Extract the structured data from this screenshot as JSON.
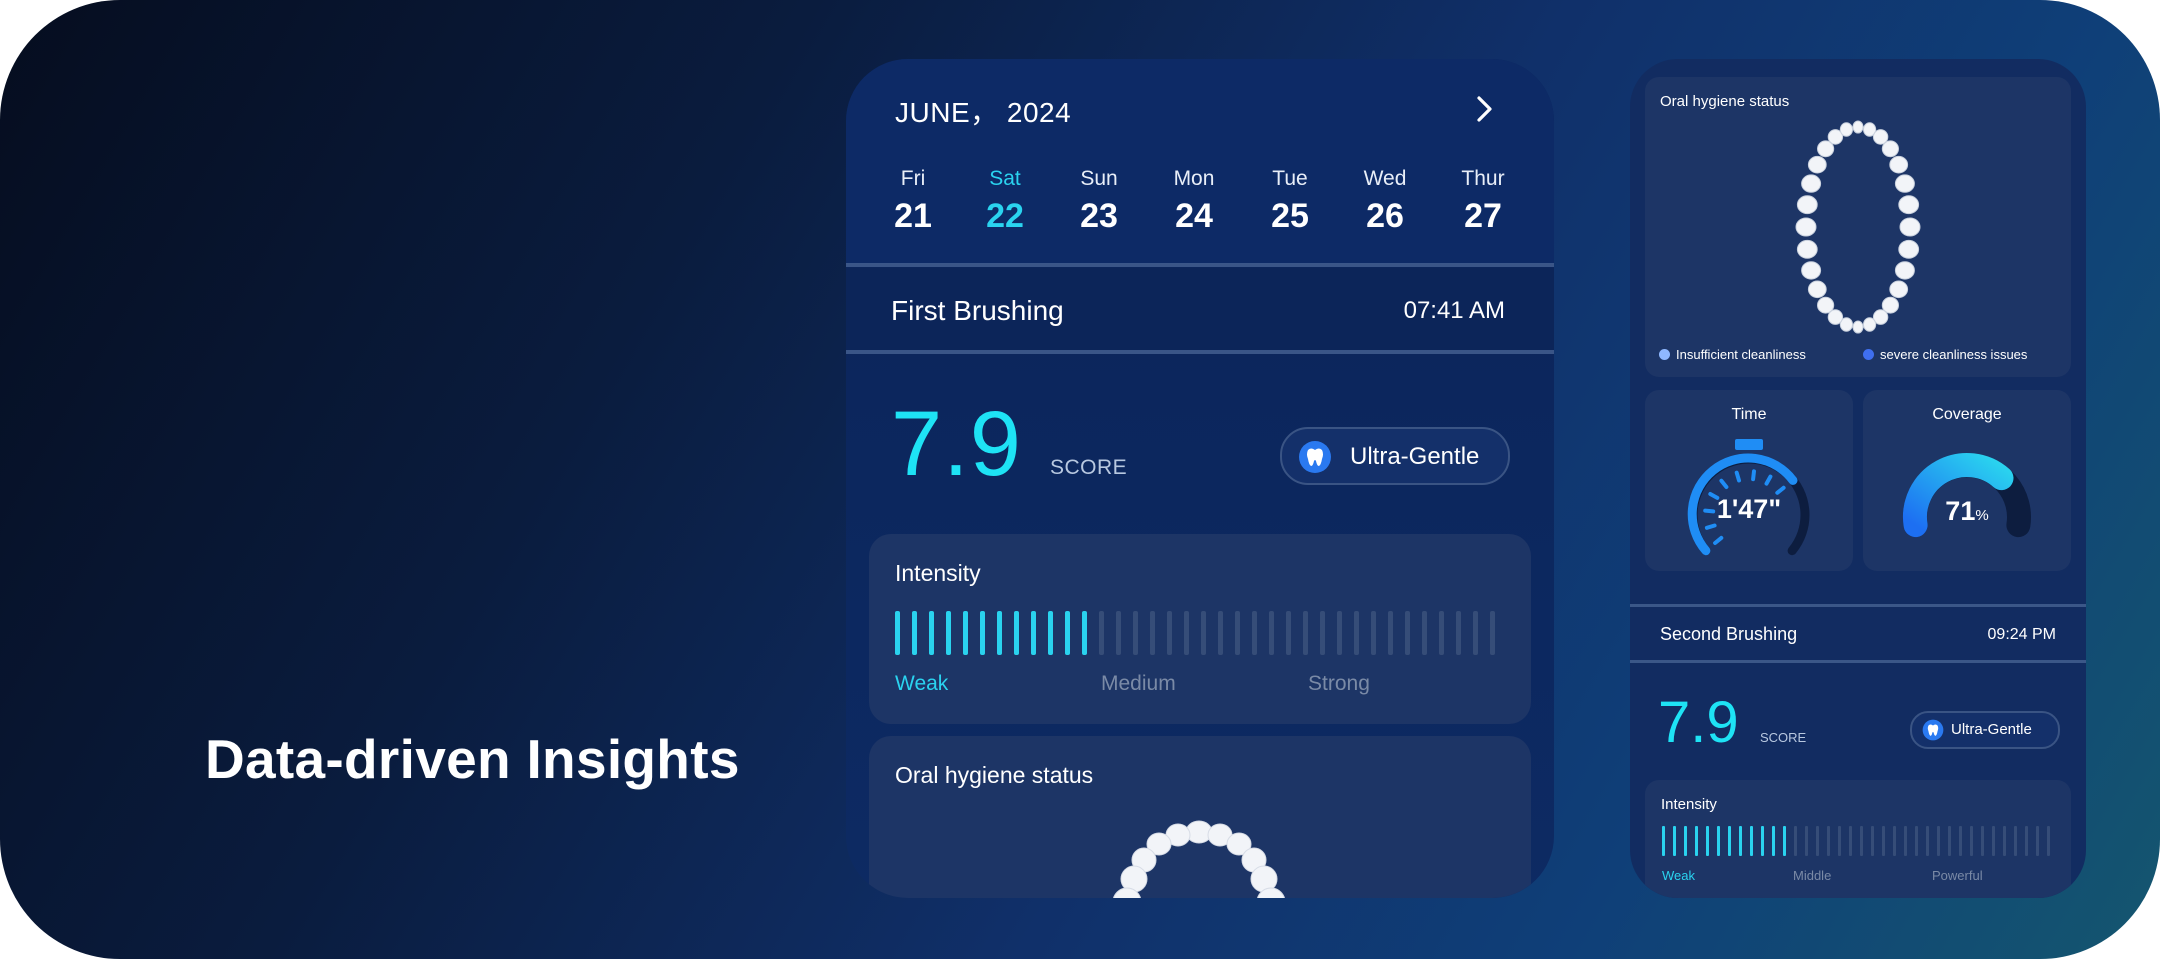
{
  "headline": "Data-driven Insights",
  "calendar": {
    "month_label": "JUNE， 2024",
    "next_icon": "chevron-right-icon",
    "days": [
      {
        "name": "Fri",
        "date": "21"
      },
      {
        "name": "Sat",
        "date": "22",
        "selected": true
      },
      {
        "name": "Sun",
        "date": "23"
      },
      {
        "name": "Mon",
        "date": "24"
      },
      {
        "name": "Tue",
        "date": "25"
      },
      {
        "name": "Wed",
        "date": "26"
      },
      {
        "name": "Thur",
        "date": "27"
      }
    ]
  },
  "first_brushing": {
    "name": "First Brushing",
    "time": "07:41 AM",
    "score": "7.9",
    "score_label": "SCORE",
    "mode": "Ultra-Gentle",
    "mode_icon": "tooth-icon",
    "intensity": {
      "title": "Intensity",
      "levels": [
        "Weak",
        "Medium",
        "Strong"
      ],
      "active_level": "Weak",
      "bars_total": 36,
      "bars_active": 12
    },
    "oral_status": {
      "title": "Oral hygiene status"
    }
  },
  "second_phone": {
    "oral_status": {
      "title": "Oral hygiene status",
      "legend": [
        {
          "label": "Insufficient cleanliness",
          "color": "#8fb8ff"
        },
        {
          "label": "severe cleanliness issues",
          "color": "#3f6ff0"
        }
      ]
    },
    "time_gauge": {
      "title": "Time",
      "value": "1'47\"",
      "fill": 0.7
    },
    "coverage_gauge": {
      "title": "Coverage",
      "value": "71",
      "unit": "%",
      "fill": 0.71
    },
    "second_brushing": {
      "name": "Second Brushing",
      "time": "09:24 PM",
      "score": "7.9",
      "score_label": "SCORE",
      "mode": "Ultra-Gentle",
      "intensity": {
        "title": "Intensity",
        "levels": [
          "Weak",
          "Middle",
          "Powerful"
        ],
        "active_level": "Weak",
        "bars_total": 36,
        "bars_active": 12
      }
    }
  },
  "colors": {
    "accent": "#2ad3ef",
    "score": "#1ee3f5",
    "card": "#1d3566",
    "inactive_bar": "#364d78"
  }
}
